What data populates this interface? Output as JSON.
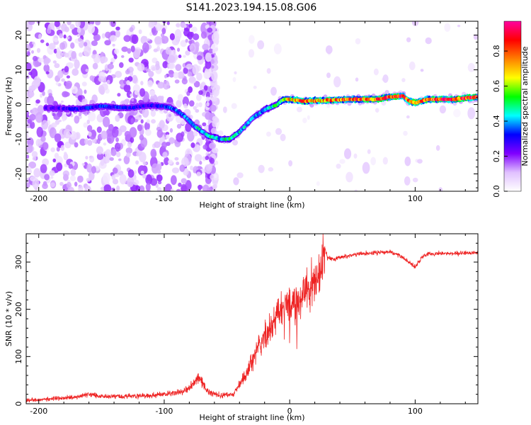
{
  "title": "S141.2023.194.15.08.G06",
  "chart_data": [
    {
      "type": "heatmap",
      "xlabel": "Height of straight line (km)",
      "ylabel": "Frequency (Hz)",
      "xlim": [
        -210,
        150
      ],
      "ylim": [
        -25,
        24
      ],
      "xticks": [
        -200,
        -100,
        0,
        100
      ],
      "yticks": [
        -20,
        -10,
        0,
        10,
        20
      ],
      "colorbar": {
        "label": "Normalized spectral amplitude",
        "range": [
          0,
          0.97
        ],
        "ticks": [
          0.0,
          0.2,
          0.4,
          0.6,
          0.8
        ],
        "colors": [
          "#ffffff",
          "#e0c0ff",
          "#8000ff",
          "#0000ff",
          "#00ffff",
          "#00ff00",
          "#ffff00",
          "#ff8000",
          "#ff0000",
          "#ff00a0"
        ]
      },
      "ridge": {
        "x": [
          -190,
          -170,
          -150,
          -130,
          -110,
          -95,
          -85,
          -75,
          -65,
          -55,
          -48,
          -40,
          -30,
          -20,
          -10,
          -5,
          0,
          10,
          30,
          50,
          70,
          80,
          90,
          95,
          100,
          110,
          130,
          150
        ],
        "y": [
          -1,
          -1.3,
          -0.5,
          -1,
          -0.2,
          -0.8,
          -3,
          -6.5,
          -9,
          -10,
          -10,
          -8,
          -4,
          -1.5,
          0,
          1.5,
          1.5,
          1,
          1.2,
          1.5,
          1.5,
          2.2,
          2.5,
          1,
          0.5,
          1.5,
          1.5,
          2.2
        ],
        "amp": [
          0.25,
          0.3,
          0.35,
          0.3,
          0.3,
          0.35,
          0.4,
          0.45,
          0.45,
          0.45,
          0.5,
          0.45,
          0.4,
          0.45,
          0.5,
          0.55,
          0.7,
          0.8,
          0.8,
          0.8,
          0.85,
          0.9,
          0.85,
          0.8,
          0.85,
          0.85,
          0.85,
          0.9
        ]
      }
    },
    {
      "type": "line",
      "xlabel": "Height of straight line (km)",
      "ylabel": "SNR (10 * v/v)",
      "xlim": [
        -210,
        150
      ],
      "ylim": [
        0,
        360
      ],
      "xticks": [
        -200,
        -100,
        0,
        100
      ],
      "yticks": [
        0,
        100,
        200,
        300
      ],
      "line_color": "#ee2222",
      "series": [
        {
          "x": [
            -210,
            -190,
            -170,
            -160,
            -150,
            -130,
            -110,
            -95,
            -85,
            -78,
            -72,
            -65,
            -55,
            -45,
            -40,
            -35,
            -30,
            -25,
            -20,
            -15,
            -10,
            -5,
            0,
            5,
            10,
            15,
            20,
            25,
            28,
            30,
            35,
            40,
            50,
            60,
            70,
            80,
            90,
            95,
            100,
            105,
            110,
            130,
            150
          ],
          "y": [
            8,
            10,
            14,
            20,
            16,
            16,
            17,
            22,
            25,
            40,
            55,
            25,
            18,
            20,
            40,
            60,
            90,
            120,
            140,
            160,
            190,
            200,
            210,
            220,
            230,
            250,
            260,
            280,
            330,
            310,
            305,
            310,
            315,
            318,
            320,
            322,
            310,
            300,
            290,
            310,
            318,
            318,
            320
          ]
        }
      ]
    }
  ]
}
